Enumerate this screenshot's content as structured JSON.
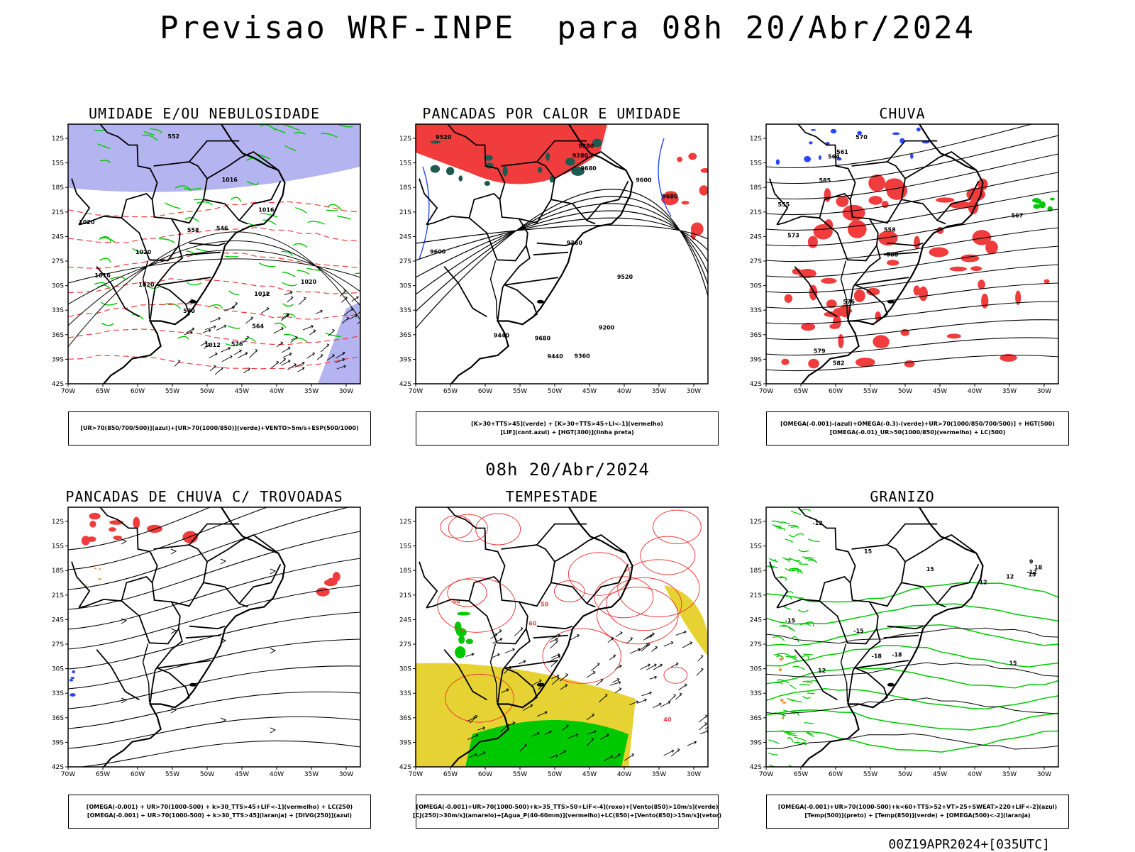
{
  "title": "Previsao WRF-INPE  para 08h 20/Abr/2024",
  "mid_title": "08h 20/Abr/2024",
  "footer": "00Z19APR2024+[035UTC]",
  "axes": {
    "lat_labels": [
      "12S",
      "15S",
      "18S",
      "21S",
      "24S",
      "27S",
      "30S",
      "33S",
      "36S",
      "39S",
      "42S"
    ],
    "lon_labels": [
      "70W",
      "65W",
      "60W",
      "55W",
      "50W",
      "45W",
      "40W",
      "35W",
      "30W"
    ]
  },
  "panels": [
    {
      "id": "umidade",
      "title": "UMIDADE E/OU NEBULOSIDADE",
      "legend": [
        "[UR>70(850/700/500)](azul)+[UR>70(1000/850)](verde)+VENTO>5m/s+ESP(500/1000)"
      ],
      "contour_labels": [
        "1016",
        "1020",
        "1020",
        "1016",
        "1012",
        "1020",
        "1016",
        "1020",
        "1012",
        "576",
        "570",
        "564",
        "558",
        "552",
        "546"
      ],
      "colors": {
        "humidity_upper": "#b4b4f0",
        "humidity_low": "#00c800",
        "thickness": "#f03c3c"
      }
    },
    {
      "id": "pancadas-calor",
      "title": "PANCADAS POR CALOR E UMIDADE",
      "legend": [
        "[K>30+TTS>45](verde) + [K>30+TTS>45+LI<-1](vermelho)",
        "[LIF](cont.azul) + [HGT(300)](linha preta)"
      ],
      "contour_labels": [
        "9680",
        "9680",
        "9680",
        "9600",
        "9600",
        "9520",
        "9520",
        "9440",
        "9440",
        "9360",
        "9360",
        "9280",
        "9280",
        "9200"
      ],
      "colors": {
        "instability": "#f03c3c",
        "k_index": "#1e5a50",
        "lif": "#2846ff"
      }
    },
    {
      "id": "chuva",
      "title": "CHUVA",
      "legend": [
        "[OMEGA(-0.001)-(azul)+OMEGA(-0.3)-(verde)+UR>70(1000/850/700/500)] + HGT(500)",
        "[OMEGA(-0.01)_UR>50(1000/850)(vermelho) + LC(500)"
      ],
      "contour_labels": [
        "588",
        "585",
        "582",
        "579",
        "576",
        "573",
        "570",
        "567",
        "564",
        "561",
        "558",
        "555"
      ],
      "colors": {
        "rain": "#f03c3c",
        "omega_weak": "#2846ff",
        "omega_strong": "#00c800"
      }
    },
    {
      "id": "pancadas-trovoadas",
      "title": "PANCADAS DE CHUVA C/ TROVOADAS",
      "legend": [
        "[OMEGA(-0.001) + UR>70(1000-500) + k>30_TTS>45+LIF<-1](vermelho) + LC(250)",
        "[OMEGA(-0.001) + UR>70(1000-500) + k>30_TTS>45](laranja) + [DIVG(250)](azul)"
      ],
      "contour_labels": [],
      "colors": {
        "storm": "#f03c3c",
        "orange": "#f08c28",
        "divergence": "#2846ff"
      }
    },
    {
      "id": "tempestade",
      "title": "TEMPESTADE",
      "legend": [
        "[OMEGA(-0.001)+UR>70(1000-500)+k>35_TTS>50+LIF<-4](roxo)+[Vento(850)>10m/s](verde)",
        "[CJ(250)>30m/s](amarelo)+[Agua_P(40-60mm)](vermelho)+LC(850)+[Vento(850)>15m/s](vetor)"
      ],
      "contour_labels": [
        "50",
        "40",
        "60",
        "50"
      ],
      "colors": {
        "jet": "#e6d232",
        "wind": "#00c800",
        "water": "#f03c3c"
      }
    },
    {
      "id": "granizo",
      "title": "GRANIZO",
      "legend": [
        "[OMEGA(-0.001)+UR>70(1000-500)+k<60+TTS>52+VT>25+SWEAT>220+LIF<-2](azul)",
        "[Temp(500)](preto) + [Temp(850)](verde) + [OMEGA(500)<-2](laranja)"
      ],
      "contour_labels": [
        "15",
        "12",
        "9",
        "15",
        "12",
        "15",
        "18",
        "12",
        "15",
        "-12",
        "-15",
        "-18",
        "-12",
        "-15",
        "-18"
      ],
      "colors": {
        "temp850": "#00c800",
        "temp500": "#000000",
        "omega": "#f08c28"
      }
    }
  ]
}
